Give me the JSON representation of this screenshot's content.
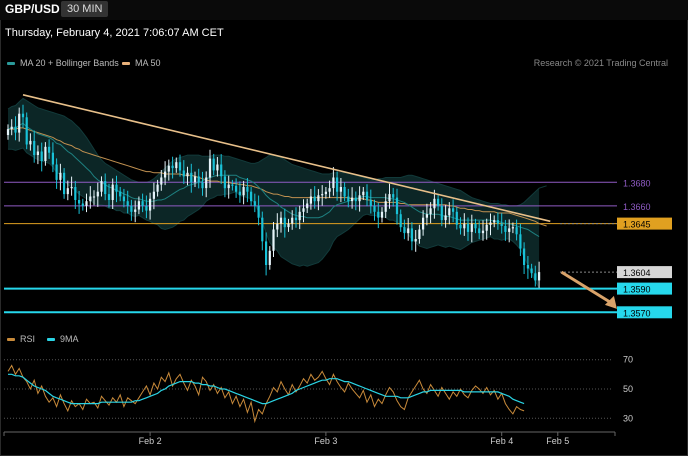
{
  "header": {
    "symbol": "GBP/USD",
    "timeframe": "30 MIN"
  },
  "datetime": "Thursday, February 4, 2021 7:06:07 AM CET",
  "legend_main": [
    {
      "label": "MA 20 + Bollinger Bands",
      "color": "#2a9a9a"
    },
    {
      "label": "MA 50",
      "color": "#e8b07a"
    }
  ],
  "legend_rsi": [
    {
      "label": "RSI",
      "color": "#c88a3a"
    },
    {
      "label": "9MA",
      "color": "#2ad4e4"
    }
  ],
  "credit": "Research © 2021 Trading Central",
  "colors": {
    "up": "#e6f4fa",
    "down": "#19c2d8",
    "trend": "#e8c08a",
    "ma50": "#c09050",
    "ma20": "#1e8080",
    "band": "#0c2626",
    "purple": "#8f5bc4",
    "orange": "#e0a020",
    "cyan": "#26d8ec",
    "arrow": "#d9a36a"
  },
  "chart_data": [
    {
      "type": "candlestick",
      "series": "GBP/USD 30 min",
      "ylim": [
        1.3555,
        1.3775
      ],
      "x_ticks": [
        {
          "index": 38,
          "label": "Feb 2"
        },
        {
          "index": 85,
          "label": "Feb 3"
        },
        {
          "index": 132,
          "label": "Feb 4"
        },
        {
          "index": 147,
          "label": "Feb 5"
        }
      ],
      "levels": [
        {
          "value": 1.368,
          "label": "1.3680",
          "style": "purple"
        },
        {
          "value": 1.366,
          "label": "1.3660",
          "style": "purple"
        },
        {
          "value": 1.3645,
          "label": "1.3645",
          "style": "orange"
        },
        {
          "value": 1.3604,
          "label": "1.3604",
          "style": "last"
        },
        {
          "value": 1.359,
          "label": "1.3590",
          "style": "cyan"
        },
        {
          "value": 1.357,
          "label": "1.3570",
          "style": "cyan"
        }
      ],
      "trendline": {
        "from": [
          4,
          1.3754
        ],
        "to": [
          145,
          1.3647
        ]
      },
      "projection": {
        "from": [
          148,
          1.3604
        ],
        "to": [
          158,
          1.3572
        ]
      },
      "close": [
        1.3725,
        1.3727,
        1.3722,
        1.3738,
        1.3735,
        1.3712,
        1.3715,
        1.3703,
        1.3706,
        1.3698,
        1.371,
        1.3705,
        1.3695,
        1.3682,
        1.3688,
        1.367,
        1.3675,
        1.3676,
        1.3665,
        1.3662,
        1.366,
        1.3664,
        1.3668,
        1.3668,
        1.3672,
        1.3681,
        1.367,
        1.3665,
        1.3678,
        1.3672,
        1.3668,
        1.3664,
        1.366,
        1.3655,
        1.3657,
        1.3664,
        1.366,
        1.3656,
        1.3666,
        1.3672,
        1.3678,
        1.3684,
        1.3689,
        1.3694,
        1.3692,
        1.3697,
        1.369,
        1.3685,
        1.3688,
        1.368,
        1.3685,
        1.368,
        1.3675,
        1.3684,
        1.37,
        1.369,
        1.3695,
        1.3685,
        1.3675,
        1.3678,
        1.3677,
        1.3672,
        1.3669,
        1.3676,
        1.3672,
        1.3664,
        1.366,
        1.365,
        1.363,
        1.361,
        1.3622,
        1.364,
        1.3645,
        1.365,
        1.3642,
        1.3645,
        1.365,
        1.3648,
        1.3655,
        1.3658,
        1.3662,
        1.3668,
        1.3664,
        1.3669,
        1.367,
        1.3672,
        1.3675,
        1.3684,
        1.3672,
        1.3676,
        1.3668,
        1.3664,
        1.3667,
        1.3664,
        1.3669,
        1.3672,
        1.3665,
        1.366,
        1.3655,
        1.365,
        1.3655,
        1.3664,
        1.367,
        1.3667,
        1.3653,
        1.3642,
        1.3637,
        1.3641,
        1.363,
        1.3632,
        1.364,
        1.365,
        1.3653,
        1.3658,
        1.3666,
        1.366,
        1.3648,
        1.3652,
        1.3658,
        1.3655,
        1.3644,
        1.3641,
        1.3645,
        1.3638,
        1.3645,
        1.3641,
        1.3637,
        1.3639,
        1.3644,
        1.3646,
        1.3648,
        1.3645,
        1.3643,
        1.3638,
        1.3641,
        1.3642,
        1.3636,
        1.3624,
        1.361,
        1.3607,
        1.3603,
        1.3597,
        1.3604
      ],
      "ma20": [
        1.3725,
        1.3726,
        1.3726,
        1.3728,
        1.373,
        1.3727,
        1.3725,
        1.3723,
        1.3721,
        1.372,
        1.3719,
        1.3718,
        1.3716,
        1.3713,
        1.3712,
        1.3709,
        1.3706,
        1.3704,
        1.3701,
        1.3698,
        1.3695,
        1.3692,
        1.3689,
        1.3685,
        1.3682,
        1.368,
        1.3678,
        1.3676,
        1.3675,
        1.3673,
        1.3672,
        1.367,
        1.3669,
        1.3667,
        1.3666,
        1.3666,
        1.3665,
        1.3664,
        1.3664,
        1.3664,
        1.3665,
        1.3665,
        1.3666,
        1.3668,
        1.367,
        1.3672,
        1.3674,
        1.3675,
        1.3677,
        1.3678,
        1.3679,
        1.368,
        1.3681,
        1.3683,
        1.3684,
        1.3685,
        1.3686,
        1.3686,
        1.3686,
        1.3686,
        1.3686,
        1.3686,
        1.3684,
        1.3683,
        1.3682,
        1.3681,
        1.3679,
        1.3676,
        1.3673,
        1.3669,
        1.3666,
        1.3664,
        1.3662,
        1.3659,
        1.3657,
        1.3655,
        1.3653,
        1.3652,
        1.3651,
        1.3651,
        1.365,
        1.365,
        1.365,
        1.365,
        1.3651,
        1.3653,
        1.3655,
        1.3659,
        1.3661,
        1.3662,
        1.3663,
        1.3664,
        1.3665,
        1.3666,
        1.3667,
        1.3668,
        1.3668,
        1.3667,
        1.3667,
        1.3667,
        1.3667,
        1.3667,
        1.3666,
        1.3666,
        1.3665,
        1.3664,
        1.3663,
        1.3661,
        1.3659,
        1.3657,
        1.3655,
        1.3654,
        1.3653,
        1.3653,
        1.3653,
        1.3653,
        1.3652,
        1.3651,
        1.3651,
        1.365,
        1.3649,
        1.3648,
        1.3648,
        1.3648,
        1.3648,
        1.3648,
        1.3648,
        1.3648,
        1.3648,
        1.3648,
        1.3647,
        1.3647,
        1.3646,
        1.3645,
        1.3645,
        1.3644,
        1.3643,
        1.3642,
        1.3641,
        1.364,
        1.3638,
        1.3636,
        1.3634
      ],
      "ma50": [
        1.3725,
        1.3725,
        1.3725,
        1.3726,
        1.3726,
        1.3725,
        1.3724,
        1.3723,
        1.3722,
        1.3721,
        1.372,
        1.3719,
        1.3718,
        1.3716,
        1.3715,
        1.3713,
        1.3712,
        1.3711,
        1.3709,
        1.3708,
        1.3706,
        1.3705,
        1.3704,
        1.3703,
        1.3702,
        1.3701,
        1.37,
        1.3699,
        1.3698,
        1.3697,
        1.3696,
        1.3695,
        1.3694,
        1.3693,
        1.3692,
        1.3691,
        1.369,
        1.3689,
        1.3689,
        1.3688,
        1.3688,
        1.3688,
        1.3687,
        1.3687,
        1.3687,
        1.3687,
        1.3687,
        1.3686,
        1.3686,
        1.3686,
        1.3685,
        1.3684,
        1.3683,
        1.3682,
        1.3681,
        1.3681,
        1.3681,
        1.368,
        1.368,
        1.368,
        1.3679,
        1.3679,
        1.3678,
        1.3678,
        1.3677,
        1.3677,
        1.3676,
        1.3675,
        1.3674,
        1.3672,
        1.3671,
        1.367,
        1.367,
        1.3669,
        1.3668,
        1.3668,
        1.3667,
        1.3667,
        1.3667,
        1.3667,
        1.3667,
        1.3667,
        1.3667,
        1.3667,
        1.3667,
        1.3667,
        1.3667,
        1.3667,
        1.3667,
        1.3667,
        1.3667,
        1.3667,
        1.3666,
        1.3666,
        1.3666,
        1.3666,
        1.3665,
        1.3665,
        1.3664,
        1.3663,
        1.3663,
        1.3663,
        1.3663,
        1.3663,
        1.3663,
        1.3662,
        1.3662,
        1.3661,
        1.3661,
        1.3661,
        1.3661,
        1.3661,
        1.3661,
        1.3661,
        1.3661,
        1.3661,
        1.3661,
        1.3661,
        1.366,
        1.366,
        1.3659,
        1.3658,
        1.3658,
        1.3657,
        1.3657,
        1.3656,
        1.3656,
        1.3655,
        1.3655,
        1.3655,
        1.3655,
        1.3654,
        1.3654,
        1.3654,
        1.3654,
        1.3653,
        1.3652,
        1.3651,
        1.365,
        1.3649,
        1.3648,
        1.3647,
        1.3645,
        1.3644,
        1.3643
      ],
      "bb_upper": [
        1.3742,
        1.3744,
        1.3745,
        1.3748,
        1.3751,
        1.3749,
        1.3747,
        1.3745,
        1.3743,
        1.3742,
        1.3741,
        1.374,
        1.3739,
        1.3738,
        1.3737,
        1.3736,
        1.3734,
        1.3732,
        1.3729,
        1.3726,
        1.3722,
        1.3718,
        1.3713,
        1.3708,
        1.3703,
        1.3699,
        1.3696,
        1.3694,
        1.3692,
        1.369,
        1.3688,
        1.3686,
        1.3684,
        1.3682,
        1.3681,
        1.368,
        1.368,
        1.368,
        1.3681,
        1.3683,
        1.3686,
        1.3689,
        1.3692,
        1.3695,
        1.3698,
        1.37,
        1.3701,
        1.3702,
        1.3703,
        1.3703,
        1.3703,
        1.3703,
        1.3702,
        1.3702,
        1.3702,
        1.3703,
        1.3703,
        1.3703,
        1.3702,
        1.3702,
        1.3701,
        1.37,
        1.3699,
        1.3698,
        1.3697,
        1.3696,
        1.3696,
        1.3697,
        1.3699,
        1.3701,
        1.3703,
        1.3703,
        1.3702,
        1.3701,
        1.3699,
        1.3697,
        1.3695,
        1.3694,
        1.3693,
        1.3692,
        1.3691,
        1.369,
        1.3689,
        1.3688,
        1.3687,
        1.3687,
        1.3687,
        1.3688,
        1.3688,
        1.3688,
        1.3688,
        1.3688,
        1.3687,
        1.3686,
        1.3685,
        1.3684,
        1.3683,
        1.3682,
        1.3682,
        1.3683,
        1.3683,
        1.3684,
        1.3684,
        1.3684,
        1.3684,
        1.3684,
        1.3685,
        1.3686,
        1.3686,
        1.3685,
        1.3684,
        1.3683,
        1.3682,
        1.3681,
        1.368,
        1.3679,
        1.3678,
        1.3677,
        1.3676,
        1.3675,
        1.3674,
        1.3673,
        1.3671,
        1.3669,
        1.3667,
        1.3666,
        1.3665,
        1.3664,
        1.3663,
        1.3662,
        1.3662,
        1.3662,
        1.3661,
        1.3661,
        1.366,
        1.366,
        1.366,
        1.3661,
        1.3663,
        1.3666,
        1.3669,
        1.3672,
        1.3675,
        1.3676,
        1.3677
      ],
      "bb_lower": [
        1.3708,
        1.3708,
        1.3707,
        1.3708,
        1.3709,
        1.3705,
        1.3703,
        1.3701,
        1.3699,
        1.3698,
        1.3697,
        1.3696,
        1.3693,
        1.3688,
        1.3687,
        1.3682,
        1.3678,
        1.3676,
        1.3673,
        1.367,
        1.3668,
        1.3666,
        1.3665,
        1.3662,
        1.3661,
        1.3661,
        1.366,
        1.3658,
        1.3658,
        1.3656,
        1.3656,
        1.3654,
        1.3654,
        1.3652,
        1.3651,
        1.3652,
        1.365,
        1.3648,
        1.3647,
        1.3645,
        1.3644,
        1.3641,
        1.364,
        1.3641,
        1.3642,
        1.3644,
        1.3647,
        1.3648,
        1.3651,
        1.3653,
        1.3655,
        1.3657,
        1.366,
        1.3664,
        1.3666,
        1.3667,
        1.3669,
        1.3669,
        1.367,
        1.367,
        1.3671,
        1.3672,
        1.3669,
        1.3668,
        1.3667,
        1.3666,
        1.3662,
        1.3655,
        1.3647,
        1.3637,
        1.3629,
        1.3625,
        1.3622,
        1.3617,
        1.3615,
        1.3613,
        1.3611,
        1.361,
        1.3609,
        1.361,
        1.3609,
        1.361,
        1.3611,
        1.3612,
        1.3615,
        1.3619,
        1.3623,
        1.363,
        1.3634,
        1.3636,
        1.3638,
        1.364,
        1.3643,
        1.3646,
        1.3649,
        1.3652,
        1.3653,
        1.3652,
        1.3652,
        1.3651,
        1.3651,
        1.365,
        1.3648,
        1.3648,
        1.3646,
        1.3644,
        1.3641,
        1.3636,
        1.3632,
        1.3629,
        1.3626,
        1.3625,
        1.3624,
        1.3625,
        1.3626,
        1.3627,
        1.3626,
        1.3625,
        1.3626,
        1.3625,
        1.3624,
        1.3623,
        1.3625,
        1.3627,
        1.3629,
        1.363,
        1.3631,
        1.3632,
        1.3633,
        1.3634,
        1.3632,
        1.3632,
        1.3631,
        1.3632,
        1.3632,
        1.363,
        1.3627,
        1.3623,
        1.3617,
        1.361,
        1.3603,
        1.3596,
        1.3591
      ]
    },
    {
      "type": "line",
      "title": "RSI",
      "ylim": [
        22,
        80
      ],
      "y_ticks": [
        70,
        50,
        30
      ],
      "series": [
        {
          "name": "RSI",
          "values": [
            62,
            66,
            60,
            64,
            58,
            55,
            50,
            56,
            47,
            52,
            45,
            41,
            44,
            38,
            46,
            40,
            35,
            42,
            38,
            40,
            36,
            43,
            40,
            41,
            37,
            45,
            42,
            39,
            44,
            41,
            46,
            38,
            44,
            42,
            40,
            44,
            48,
            52,
            46,
            54,
            50,
            58,
            55,
            61,
            52,
            57,
            60,
            54,
            49,
            56,
            52,
            46,
            58,
            55,
            49,
            53,
            47,
            51,
            44,
            48,
            40,
            45,
            38,
            43,
            34,
            41,
            28,
            36,
            33,
            40,
            45,
            51,
            48,
            55,
            50,
            46,
            53,
            48,
            52,
            57,
            54,
            60,
            56,
            58,
            62,
            57,
            53,
            60,
            55,
            51,
            48,
            54,
            50,
            47,
            44,
            49,
            41,
            46,
            38,
            43,
            40,
            46,
            51,
            48,
            42,
            38,
            36,
            44,
            48,
            52,
            56,
            50,
            47,
            53,
            49,
            45,
            51,
            47,
            43,
            48,
            45,
            50,
            46,
            44,
            49,
            52,
            50,
            47,
            51,
            46,
            49,
            43,
            47,
            40,
            36,
            33,
            38,
            36,
            35
          ]
        },
        {
          "name": "9MA",
          "values": [
            60,
            60,
            59,
            59,
            58,
            56,
            54,
            52,
            51,
            50,
            49,
            47,
            45,
            44,
            43,
            42,
            41,
            40,
            40,
            40,
            40,
            40,
            40,
            40,
            40,
            41,
            41,
            41,
            41,
            41,
            41,
            41,
            41,
            41,
            42,
            42,
            43,
            44,
            45,
            46,
            47,
            49,
            50,
            52,
            53,
            54,
            55,
            55,
            55,
            55,
            54,
            54,
            53,
            53,
            52,
            52,
            51,
            50,
            50,
            49,
            48,
            47,
            46,
            45,
            44,
            43,
            42,
            41,
            40,
            40,
            41,
            42,
            43,
            44,
            45,
            46,
            47,
            49,
            50,
            51,
            52,
            53,
            54,
            55,
            56,
            56,
            57,
            57,
            57,
            56,
            55,
            55,
            54,
            53,
            52,
            51,
            50,
            49,
            48,
            47,
            46,
            45,
            45,
            45,
            45,
            44,
            44,
            44,
            45,
            46,
            47,
            48,
            48,
            49,
            49,
            49,
            49,
            49,
            49,
            49,
            49,
            49,
            48,
            48,
            48,
            48,
            48,
            48,
            48,
            48,
            48,
            48,
            47,
            46,
            45,
            43,
            42,
            41,
            40
          ]
        }
      ]
    }
  ]
}
